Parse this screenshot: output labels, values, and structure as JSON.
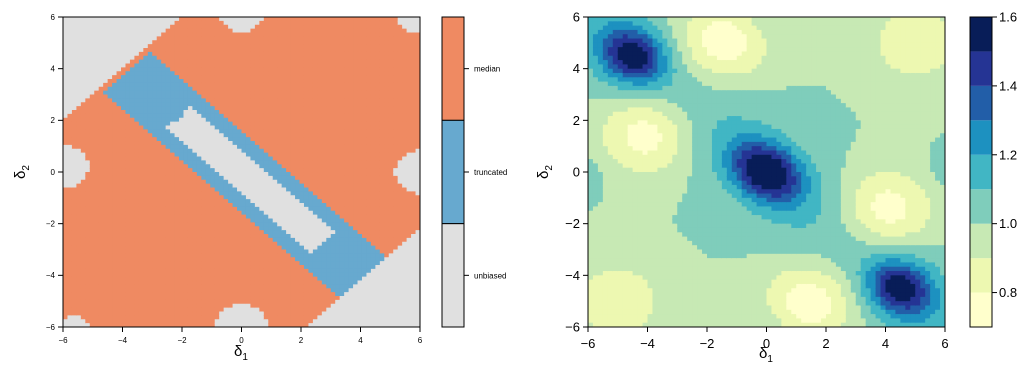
{
  "chart_data": [
    {
      "type": "heatmap",
      "title": "",
      "xlabel": "δ",
      "xlabel_sub": "1",
      "ylabel": "δ",
      "ylabel_sub": "2",
      "xlim": [
        -6,
        6
      ],
      "ylim": [
        -6,
        6
      ],
      "x_ticks": [
        "−6",
        "−4",
        "−2",
        "0",
        "2",
        "4",
        "6"
      ],
      "y_ticks": [
        "−6",
        "−4",
        "−2",
        "0",
        "2",
        "4",
        "6"
      ],
      "categories": [
        "unbiased",
        "truncated",
        "median"
      ],
      "colors": {
        "median": "#EF8A62",
        "truncated": "#67A9CF",
        "unbiased": "#E0E0E0"
      },
      "regions": {
        "unbiased": [
          "upper-left corner band along δ2 = δ1 + 8 to 12",
          "lower-right corner band along δ2 = δ1 − 8 to −12",
          "central band along diagonal δ2 ≈ −δ1 from (−1, 2) to (3, −2)",
          "patches near (6, 0), (−6, 0), (0, −6), (0, 6), (6, 6), (−5.5, −6)"
        ],
        "truncated": [
          "band along diagonal δ2 ≈ −δ1 from (−4.5, 4) to (5, −4)"
        ],
        "median": [
          "remaining area"
        ]
      },
      "legend": {
        "labels": [
          "median",
          "truncated",
          "unbiased"
        ],
        "placement": "right"
      },
      "grid": false
    },
    {
      "type": "heatmap",
      "title": "",
      "xlabel": "δ",
      "xlabel_sub": "1",
      "ylabel": "δ",
      "ylabel_sub": "2",
      "xlim": [
        -6,
        6
      ],
      "ylim": [
        -6,
        6
      ],
      "x_ticks": [
        "−6",
        "−4",
        "−2",
        "0",
        "2",
        "4",
        "6"
      ],
      "y_ticks": [
        "−6",
        "−4",
        "−2",
        "0",
        "2",
        "4",
        "6"
      ],
      "colorbar": {
        "range": [
          0.7,
          1.6
        ],
        "levels": [
          0.7,
          0.8,
          0.9,
          1.0,
          1.1,
          1.2,
          1.3,
          1.4,
          1.5,
          1.6
        ],
        "tick_labels": [
          "0.8",
          "1.0",
          "1.2",
          "1.4",
          "1.6"
        ],
        "placement": "right"
      },
      "palette": [
        "#FFFFCC",
        "#EDF8B1",
        "#C7E9B4",
        "#7FCDBB",
        "#41B6C4",
        "#1D91C0",
        "#225EA8",
        "#253494",
        "#081D58"
      ],
      "peaks": [
        {
          "x": 0,
          "y": 0,
          "value": 1.6
        },
        {
          "x": -4.5,
          "y": 4.5,
          "value": 1.5
        },
        {
          "x": 4.5,
          "y": -4.5,
          "value": 1.5
        }
      ],
      "troughs": [
        {
          "x": -4,
          "y": 1.5,
          "value": 0.72
        },
        {
          "x": -1.5,
          "y": 5,
          "value": 0.72
        },
        {
          "x": 4,
          "y": -1.5,
          "value": 0.72
        },
        {
          "x": 1.5,
          "y": -5,
          "value": 0.72
        },
        {
          "x": 5,
          "y": 5,
          "value": 0.82
        },
        {
          "x": -5,
          "y": -5,
          "value": 0.82
        }
      ],
      "grid": false
    }
  ]
}
